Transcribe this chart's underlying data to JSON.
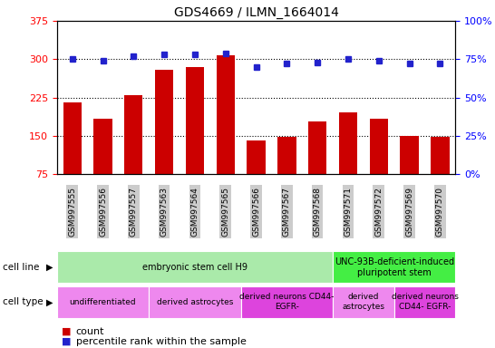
{
  "title": "GDS4669 / ILMN_1664014",
  "samples": [
    "GSM997555",
    "GSM997556",
    "GSM997557",
    "GSM997563",
    "GSM997564",
    "GSM997565",
    "GSM997566",
    "GSM997567",
    "GSM997568",
    "GSM997571",
    "GSM997572",
    "GSM997569",
    "GSM997570"
  ],
  "counts": [
    215,
    183,
    230,
    280,
    285,
    308,
    140,
    148,
    178,
    195,
    183,
    150,
    147
  ],
  "percentiles": [
    75,
    74,
    77,
    78,
    78,
    79,
    70,
    72,
    73,
    75,
    74,
    72,
    72
  ],
  "ylim_left": [
    75,
    375
  ],
  "ylim_right": [
    0,
    100
  ],
  "yticks_left": [
    75,
    150,
    225,
    300,
    375
  ],
  "yticks_right": [
    0,
    25,
    50,
    75,
    100
  ],
  "bar_color": "#cc0000",
  "dot_color": "#2222cc",
  "cell_line_groups": [
    {
      "label": "embryonic stem cell H9",
      "start": 0,
      "end": 9,
      "color": "#aaeaaa"
    },
    {
      "label": "UNC-93B-deficient-induced\npluripotent stem",
      "start": 9,
      "end": 13,
      "color": "#44ee44"
    }
  ],
  "cell_type_groups": [
    {
      "label": "undifferentiated",
      "start": 0,
      "end": 3,
      "color": "#ee88ee"
    },
    {
      "label": "derived astrocytes",
      "start": 3,
      "end": 6,
      "color": "#ee88ee"
    },
    {
      "label": "derived neurons CD44-\nEGFR-",
      "start": 6,
      "end": 9,
      "color": "#dd44dd"
    },
    {
      "label": "derived\nastrocytes",
      "start": 9,
      "end": 11,
      "color": "#ee88ee"
    },
    {
      "label": "derived neurons\nCD44- EGFR-",
      "start": 11,
      "end": 13,
      "color": "#dd44dd"
    }
  ],
  "bg_color": "#ffffff",
  "tick_bg_color": "#cccccc"
}
